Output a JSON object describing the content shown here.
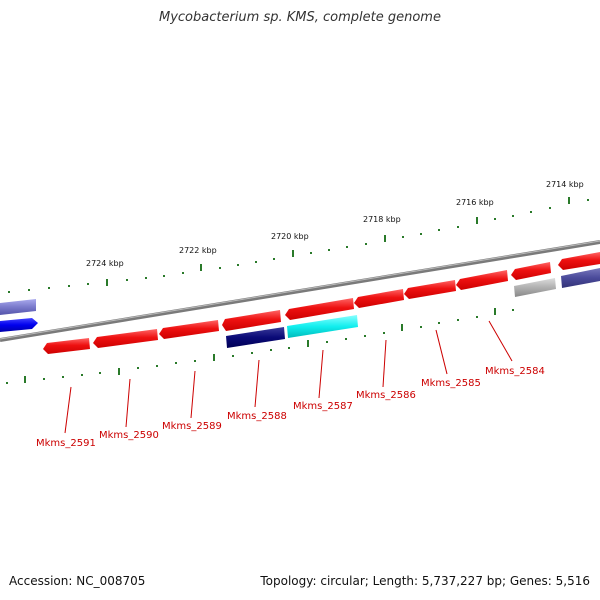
{
  "title": "Mycobacterium sp. KMS, complete genome",
  "footer": {
    "accession": "Accession: NC_008705",
    "summary": "Topology: circular; Length: 5,737,227 bp; Genes: 5,516"
  },
  "colors": {
    "backbone": "#7a7a7a",
    "tick": "#2a7a2a",
    "gene_red": "#ee1111",
    "gene_navy": "#0a0a77",
    "gene_cyan": "#00eeee",
    "gene_grey": "#b0b0b0",
    "gene_slate": "#4a4a9a",
    "gene_blue": "#0000ee",
    "gene_lavender": "#7a7acc",
    "label": "#cc0000"
  },
  "scale_labels": [
    {
      "text": "2714 kbp",
      "kbp": 2714
    },
    {
      "text": "2716 kbp",
      "kbp": 2716
    },
    {
      "text": "2718 kbp",
      "kbp": 2718
    },
    {
      "text": "2720 kbp",
      "kbp": 2720
    },
    {
      "text": "2722 kbp",
      "kbp": 2722
    },
    {
      "text": "2724 kbp",
      "kbp": 2724
    }
  ],
  "genes": [
    {
      "name": "Mkms_2584",
      "strand": "minus",
      "color": "red"
    },
    {
      "name": "Mkms_2585",
      "strand": "minus",
      "color": "red"
    },
    {
      "name": "Mkms_2586",
      "strand": "minus",
      "color": "red"
    },
    {
      "name": "Mkms_2587",
      "strand": "plus",
      "color": "cyan"
    },
    {
      "name": "Mkms_2588",
      "strand": "plus",
      "color": "navy"
    },
    {
      "name": "Mkms_2589",
      "strand": "minus",
      "color": "red"
    },
    {
      "name": "Mkms_2590",
      "strand": "minus",
      "color": "red"
    },
    {
      "name": "Mkms_2591",
      "strand": "minus",
      "color": "red"
    }
  ]
}
